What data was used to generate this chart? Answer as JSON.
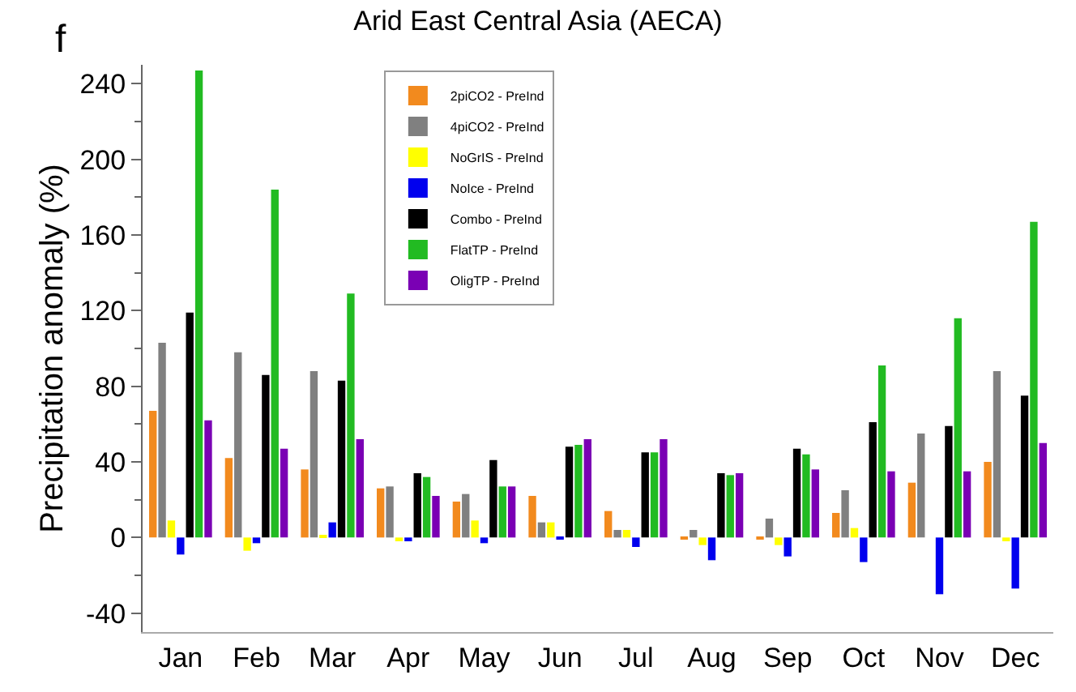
{
  "chart_data": {
    "type": "bar",
    "title": "Arid East Central Asia (AECA)",
    "ylabel": "Precipitation anomaly (%)",
    "annotations": [
      "f"
    ],
    "categories": [
      "Jan",
      "Feb",
      "Mar",
      "Apr",
      "May",
      "Jun",
      "Jul",
      "Aug",
      "Sep",
      "Oct",
      "Nov",
      "Dec"
    ],
    "series": [
      {
        "name": "2piCO2 - PreInd",
        "color": "#f28a1e",
        "values": [
          67,
          42,
          36,
          26,
          19,
          22,
          14,
          -1,
          -1,
          13,
          29,
          40
        ]
      },
      {
        "name": "4piCO2 - PreInd",
        "color": "#808080",
        "values": [
          103,
          98,
          88,
          27,
          23,
          8,
          4,
          4,
          10,
          25,
          55,
          88
        ]
      },
      {
        "name": "NoGrIS - PreInd",
        "color": "#ffff00",
        "values": [
          9,
          -7,
          1,
          -2,
          9,
          8,
          4,
          -4,
          -4,
          5,
          0,
          -2
        ]
      },
      {
        "name": "NoIce - PreInd",
        "color": "#0000ee",
        "values": [
          -9,
          -3,
          8,
          -2,
          -3,
          -1,
          -5,
          -12,
          -10,
          -13,
          -30,
          -27
        ]
      },
      {
        "name": "Combo - PreInd",
        "color": "#000000",
        "values": [
          119,
          86,
          83,
          34,
          41,
          48,
          45,
          34,
          47,
          61,
          59,
          75
        ]
      },
      {
        "name": "FlatTP - PreInd",
        "color": "#22bb22",
        "values": [
          247,
          184,
          129,
          32,
          27,
          49,
          45,
          33,
          44,
          91,
          116,
          167
        ]
      },
      {
        "name": "OligTP - PreInd",
        "color": "#7a00b4",
        "values": [
          62,
          47,
          52,
          22,
          27,
          52,
          52,
          34,
          36,
          35,
          35,
          50
        ]
      }
    ],
    "ylim": [
      -50,
      250
    ],
    "yticks": [
      -40,
      0,
      40,
      80,
      120,
      160,
      200,
      240
    ],
    "legend": "top left"
  }
}
